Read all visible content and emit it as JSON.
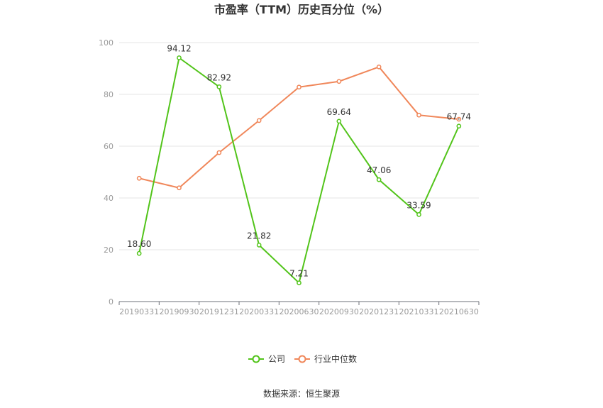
{
  "chart_data": {
    "type": "line",
    "title": "市盈率（TTM）历史百分位（%）",
    "categories": [
      "20190331",
      "20190930",
      "20191231",
      "20200331",
      "20200630",
      "20200930",
      "20201231",
      "20210331",
      "20210630"
    ],
    "ylim": [
      0,
      100
    ],
    "yticks": [
      0,
      20,
      40,
      60,
      80,
      100
    ],
    "grid": true,
    "legend_position": "bottom",
    "series": [
      {
        "name": "公司",
        "color": "#52c41a",
        "show_labels": true,
        "values": [
          18.6,
          94.12,
          82.92,
          21.82,
          7.21,
          69.64,
          47.06,
          33.59,
          67.74
        ],
        "labels": [
          "18.60",
          "94.12",
          "82.92",
          "21.82",
          "7.21",
          "69.64",
          "47.06",
          "33.59",
          "67.74"
        ]
      },
      {
        "name": "行业中位数",
        "color": "#f0875a",
        "show_labels": false,
        "values": [
          47.6,
          43.9,
          57.5,
          69.9,
          82.8,
          85.0,
          90.6,
          72.0,
          70.4
        ]
      }
    ]
  },
  "source_text": "数据来源：恒生聚源"
}
